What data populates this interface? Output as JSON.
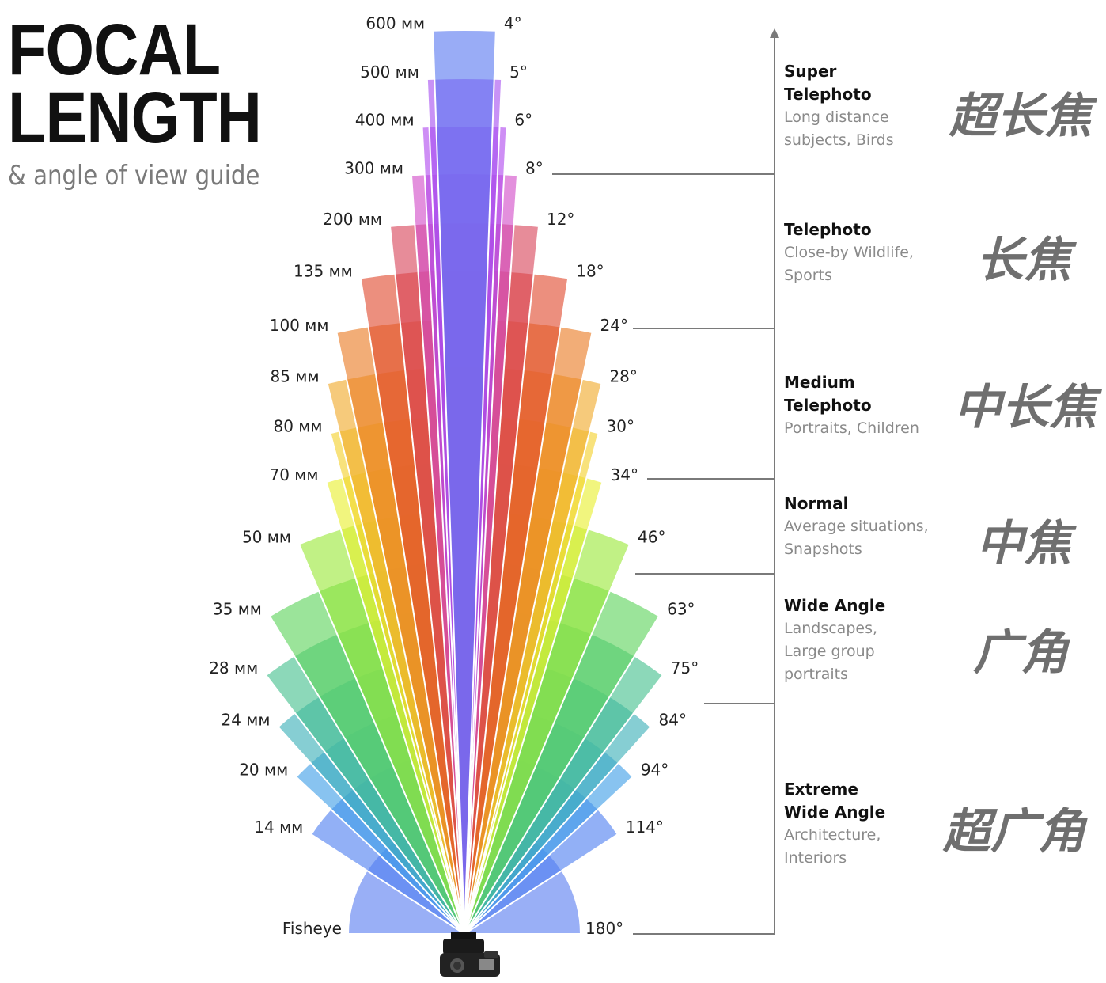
{
  "title": {
    "line1": "FOCAL",
    "line2": "LENGTH",
    "subtitle": "& angle of view guide"
  },
  "lenses": [
    {
      "mm": "600 мм",
      "deg": "4°",
      "angle": 4
    },
    {
      "mm": "500 мм",
      "deg": "5°",
      "angle": 5
    },
    {
      "mm": "400 мм",
      "deg": "6°",
      "angle": 6
    },
    {
      "mm": "300 мм",
      "deg": "8°",
      "angle": 8
    },
    {
      "mm": "200 мм",
      "deg": "12°",
      "angle": 12
    },
    {
      "mm": "135 мм",
      "deg": "18°",
      "angle": 18
    },
    {
      "mm": "100 мм",
      "deg": "24°",
      "angle": 24
    },
    {
      "mm": "85 мм",
      "deg": "28°",
      "angle": 28
    },
    {
      "mm": "80 мм",
      "deg": "30°",
      "angle": 30
    },
    {
      "mm": "70 мм",
      "deg": "34°",
      "angle": 34
    },
    {
      "mm": "50 мм",
      "deg": "46°",
      "angle": 46
    },
    {
      "mm": "35 мм",
      "deg": "63°",
      "angle": 63
    },
    {
      "mm": "28 мм",
      "deg": "75°",
      "angle": 75
    },
    {
      "mm": "24 мм",
      "deg": "84°",
      "angle": 84
    },
    {
      "mm": "20 мм",
      "deg": "94°",
      "angle": 94
    },
    {
      "mm": "14 мм",
      "deg": "114°",
      "angle": 114
    },
    {
      "mm": "Fisheye",
      "deg": "180°",
      "angle": 180
    }
  ],
  "categories": [
    {
      "title": "Super\nTelephoto",
      "desc": "Long distance\nsubjects, Birds",
      "cn": "超长焦"
    },
    {
      "title": "Telephoto",
      "desc": "Close-by Wildlife,\nSports",
      "cn": "长焦"
    },
    {
      "title": "Medium\nTelephoto",
      "desc": "Portraits, Children",
      "cn": "中长焦"
    },
    {
      "title": "Normal",
      "desc": "Average situations,\nSnapshots",
      "cn": "中焦"
    },
    {
      "title": "Wide Angle",
      "desc": "Landscapes,\nLarge group\nportraits",
      "cn": "广角"
    },
    {
      "title": "Extreme\nWide Angle",
      "desc": "Architecture,\nInteriors",
      "cn": "超广角"
    }
  ],
  "colors": [
    "#5b79f0",
    "#a64ff0",
    "#b048ef",
    "#d24cc8",
    "#d9455a",
    "#e04a2e",
    "#ea7a24",
    "#f0a92a",
    "#f4d02c",
    "#e8ef2e",
    "#9be83a",
    "#5ed35c",
    "#45c08e",
    "#3bb0b8",
    "#3f9ee6",
    "#4f7ff0",
    "#5b7ef0"
  ]
}
